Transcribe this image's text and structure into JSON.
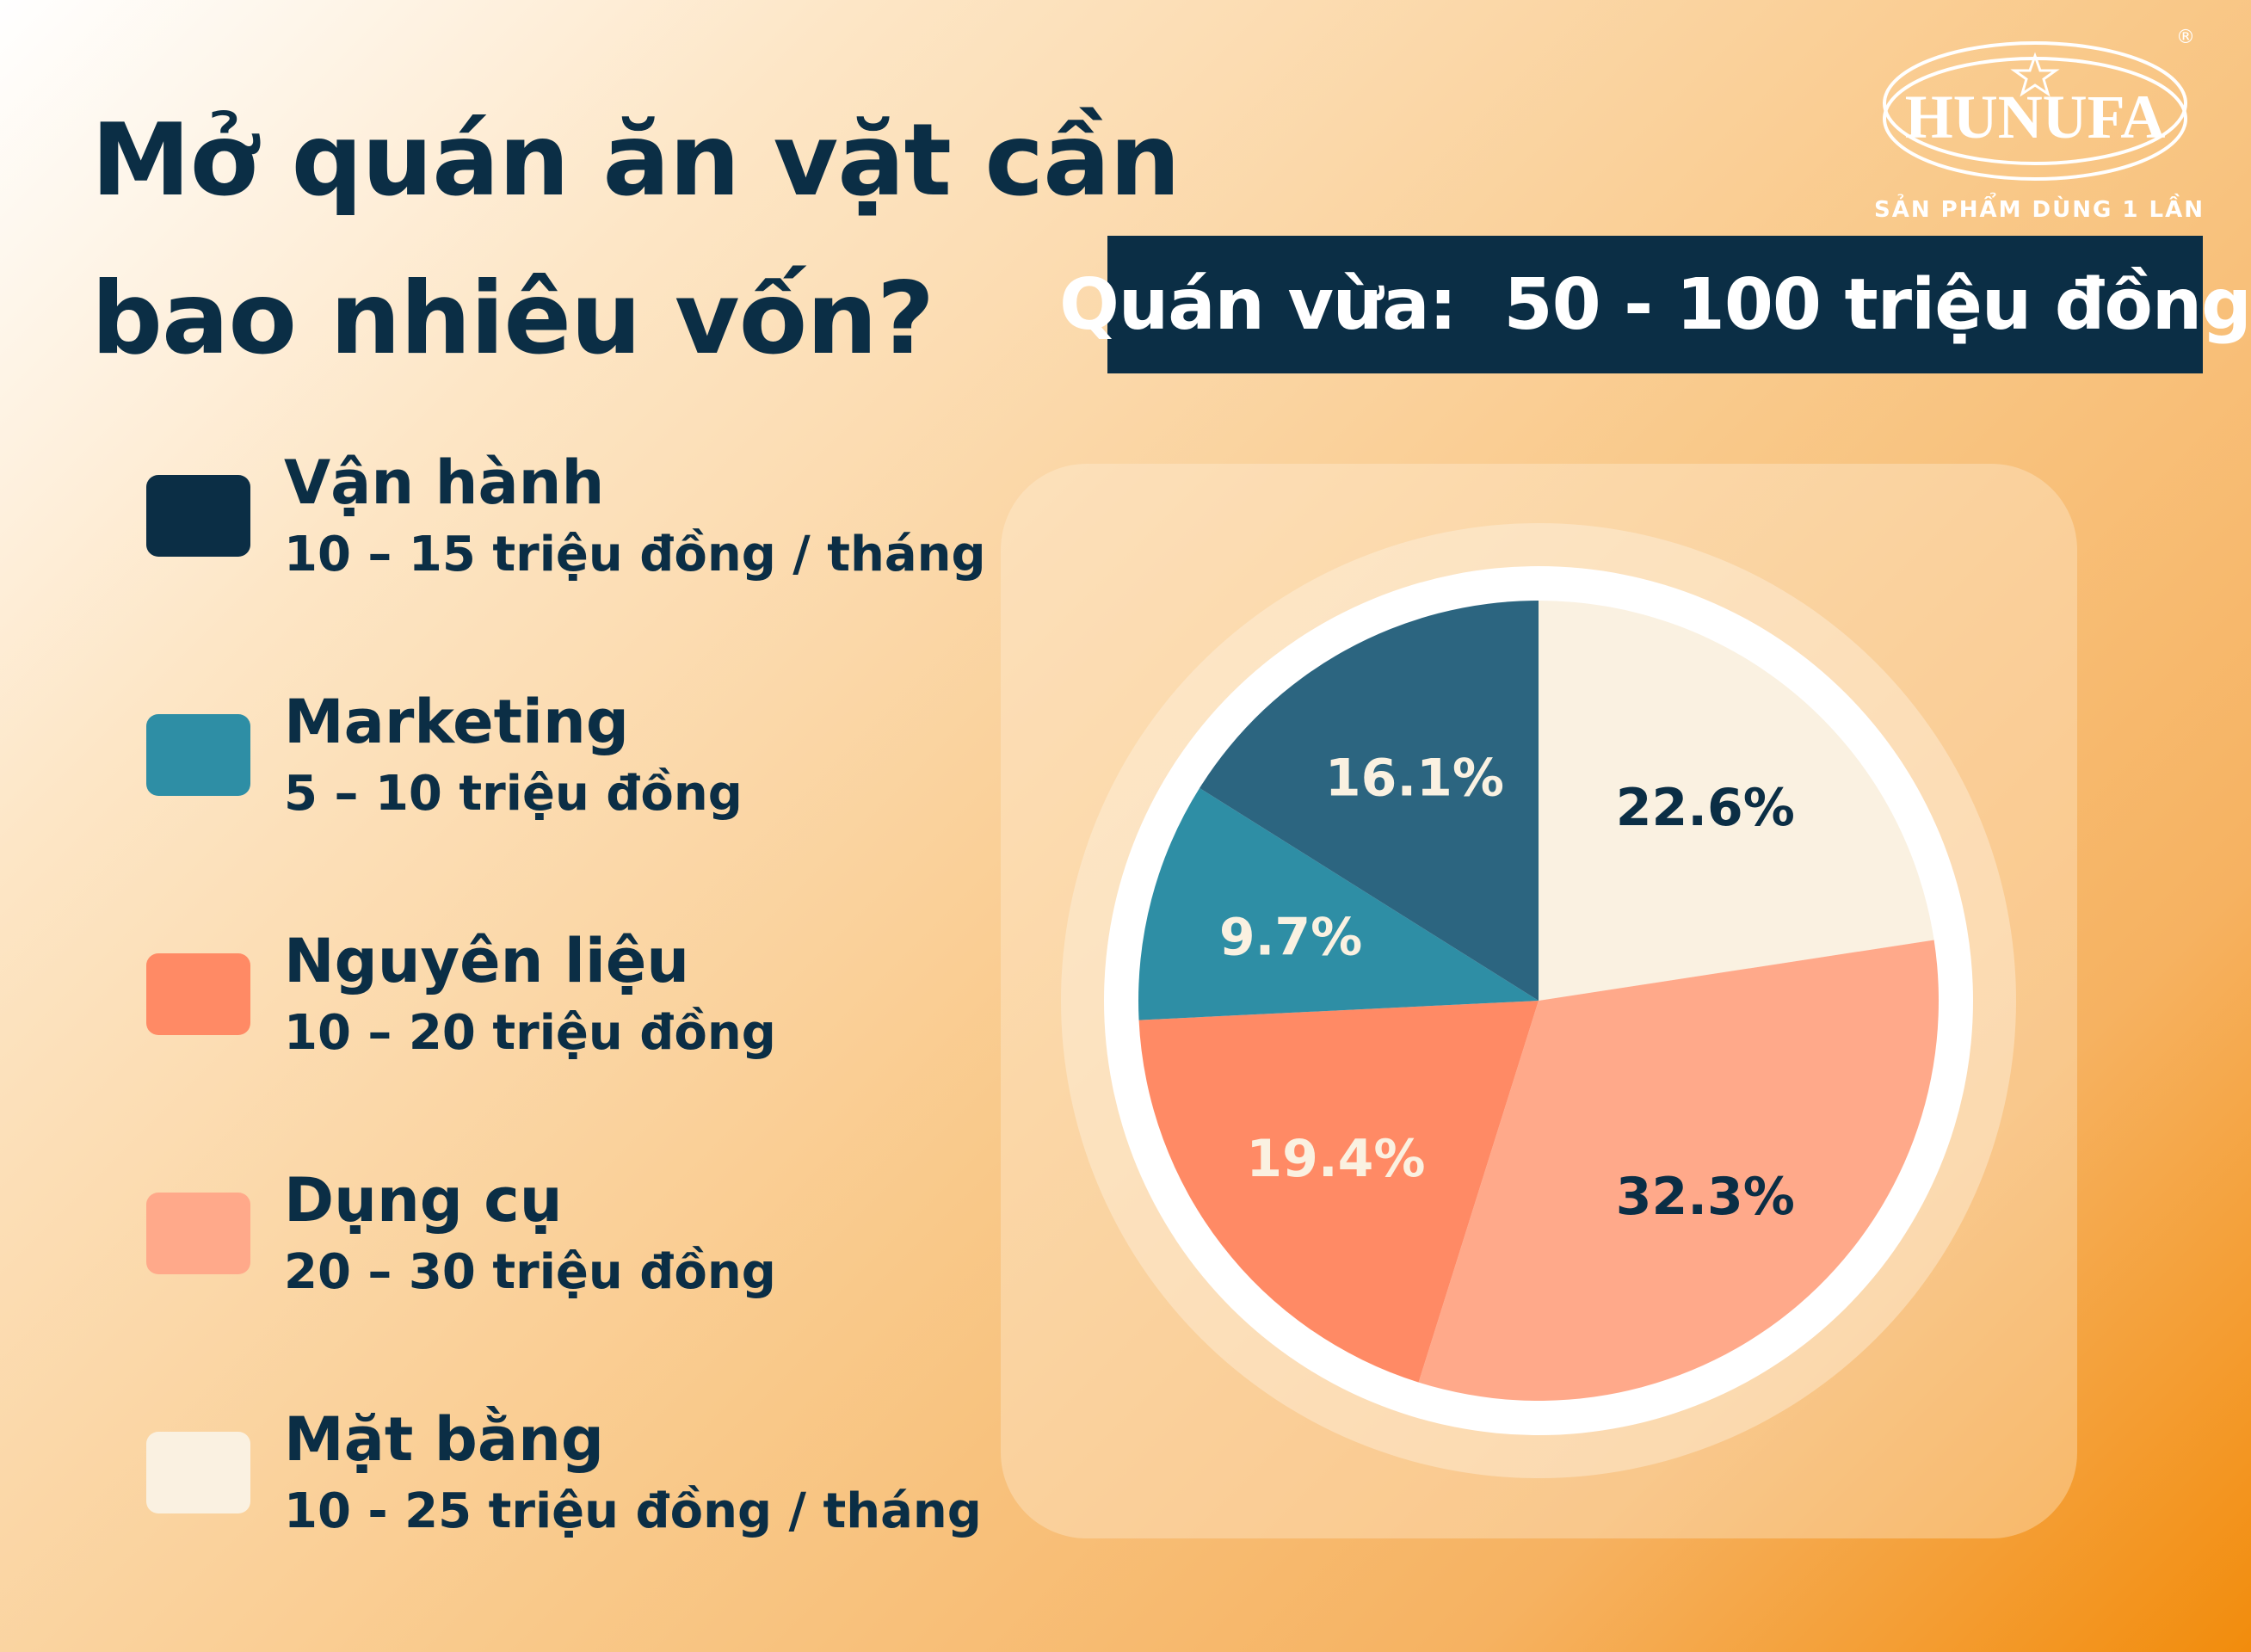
{
  "title": {
    "line1": "Mở quán ăn vặt cần",
    "line2": "bao nhiêu vốn?"
  },
  "banner": "Quán vừa:  50 - 100 triệu đồng",
  "logo": {
    "brand": "HUNUFA",
    "tagline": "SẢN PHẨM DÙNG 1 LẦN",
    "mark": "®"
  },
  "legend": [
    {
      "label": "Vận hành",
      "detail": "10 – 15 triệu đồng / tháng",
      "color": "#0b2e45"
    },
    {
      "label": "Marketing",
      "detail": "5 – 10 triệu đồng",
      "color": "#2e8ea5"
    },
    {
      "label": "Nguyên liệu",
      "detail": "10 – 20 triệu đồng",
      "color": "#ff8a65"
    },
    {
      "label": "Dụng cụ",
      "detail": "20 – 30 triệu đồng",
      "color": "#ffa98a"
    },
    {
      "label": "Mặt bằng",
      "detail": "10 - 25 triệu đồng / tháng",
      "color": "#faf1e1"
    }
  ],
  "chart_data": {
    "type": "pie",
    "start": "top, clockwise",
    "slices": [
      {
        "category": "Mặt bằng",
        "value": 22.6,
        "label": "22.6%",
        "color": "#faf1e1",
        "label_color": "#0b2e45"
      },
      {
        "category": "Dụng cụ",
        "value": 32.3,
        "label": "32.3%",
        "color": "#ffa98a",
        "label_color": "#0b2e45"
      },
      {
        "category": "Nguyên liệu",
        "value": 19.4,
        "label": "19.4%",
        "color": "#ff8a65",
        "label_color": "#faf1e1"
      },
      {
        "category": "Marketing",
        "value": 9.7,
        "label": "9.7%",
        "color": "#2e8ea5",
        "label_color": "#faf1e1"
      },
      {
        "category": "Vận hành",
        "value": 16.1,
        "label": "16.1%",
        "color": "#2c6580",
        "label_color": "#faf1e1"
      }
    ]
  }
}
